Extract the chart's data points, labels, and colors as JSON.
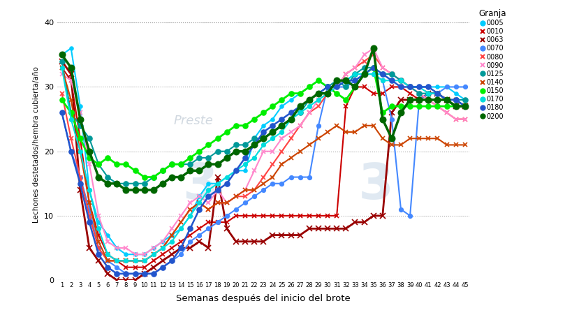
{
  "xlabel": "Semanas después del inicio del brote",
  "ylabel": "Lechones destetados/hembra cubierta/año",
  "legend_title": "Granja",
  "ylim": [
    0,
    42
  ],
  "yticks": [
    0,
    10,
    20,
    30,
    40
  ],
  "background_color": "#ffffff",
  "watermark_text": "3        3",
  "watermark_label": "Preste",
  "series": {
    "0005": {
      "color": "#00ccff",
      "marker": "o",
      "linewidth": 1.5,
      "markersize": 3.5,
      "x": [
        1,
        2,
        3,
        4,
        5,
        6,
        7,
        8,
        9,
        10,
        11,
        12,
        13,
        14,
        15,
        16,
        17,
        18,
        19,
        20,
        21,
        22,
        23,
        24,
        25,
        26,
        27,
        28,
        29,
        30,
        31,
        32,
        33,
        34,
        35,
        36,
        37,
        38,
        39,
        40,
        41,
        42,
        43,
        44,
        45
      ],
      "y": [
        35,
        36,
        27,
        14,
        9,
        7,
        5,
        4,
        4,
        4,
        5,
        6,
        7,
        8,
        10,
        13,
        15,
        15,
        16,
        17,
        17,
        22,
        24,
        25,
        27,
        28,
        29,
        30,
        31,
        30,
        30,
        31,
        32,
        32,
        32,
        32,
        32,
        31,
        30,
        30,
        30,
        30,
        30,
        29,
        28
      ]
    },
    "0010": {
      "color": "#cc0000",
      "marker": "x",
      "linewidth": 1.5,
      "markersize": 5,
      "x": [
        1,
        2,
        3,
        4,
        5,
        6,
        7,
        8,
        9,
        10,
        11,
        12,
        13,
        14,
        15,
        16,
        17,
        18,
        19,
        20,
        21,
        22,
        23,
        24,
        25,
        26,
        27,
        28,
        29,
        30,
        31,
        32,
        33,
        34,
        35,
        36,
        37,
        38,
        39,
        40,
        41,
        42,
        43,
        44,
        45
      ],
      "y": [
        33,
        31,
        22,
        12,
        7,
        4,
        3,
        2,
        2,
        2,
        3,
        4,
        5,
        6,
        7,
        8,
        9,
        9,
        9,
        10,
        10,
        10,
        10,
        10,
        10,
        10,
        10,
        10,
        10,
        10,
        10,
        27,
        30,
        30,
        29,
        29,
        30,
        30,
        29,
        28,
        28,
        28,
        28,
        28,
        27
      ]
    },
    "0063": {
      "color": "#990000",
      "marker": "x",
      "linewidth": 2.0,
      "markersize": 6,
      "x": [
        1,
        2,
        3,
        4,
        5,
        6,
        7,
        8,
        9,
        10,
        11,
        12,
        13,
        14,
        15,
        16,
        17,
        18,
        19,
        20,
        21,
        22,
        23,
        24,
        25,
        26,
        27,
        28,
        29,
        30,
        31,
        32,
        33,
        34,
        35,
        36,
        37,
        38,
        39,
        40,
        41,
        42,
        43,
        44,
        45
      ],
      "y": [
        34,
        32,
        14,
        5,
        3,
        1,
        0,
        0,
        0,
        1,
        2,
        3,
        4,
        5,
        5,
        6,
        5,
        16,
        8,
        6,
        6,
        6,
        6,
        7,
        7,
        7,
        7,
        8,
        8,
        8,
        8,
        8,
        9,
        9,
        10,
        10,
        26,
        28,
        28,
        28,
        29,
        29,
        28,
        27,
        27
      ]
    },
    "0070": {
      "color": "#4488ff",
      "marker": "o",
      "linewidth": 1.5,
      "markersize": 4,
      "x": [
        1,
        2,
        3,
        4,
        5,
        6,
        7,
        8,
        9,
        10,
        11,
        12,
        13,
        14,
        15,
        16,
        17,
        18,
        19,
        20,
        21,
        22,
        23,
        24,
        25,
        26,
        27,
        28,
        29,
        30,
        31,
        32,
        33,
        34,
        35,
        36,
        37,
        38,
        39,
        40,
        41,
        42,
        43,
        44,
        45
      ],
      "y": [
        26,
        20,
        16,
        11,
        5,
        3,
        2,
        1,
        1,
        1,
        1,
        2,
        3,
        4,
        6,
        7,
        8,
        9,
        10,
        11,
        12,
        13,
        14,
        15,
        15,
        16,
        16,
        16,
        24,
        30,
        30,
        30,
        31,
        32,
        32,
        31,
        25,
        11,
        10,
        28,
        29,
        29,
        30,
        30,
        30
      ]
    },
    "0080": {
      "color": "#ff4444",
      "marker": "x",
      "linewidth": 1.5,
      "markersize": 5,
      "x": [
        1,
        2,
        3,
        4,
        5,
        6,
        7,
        8,
        9,
        10,
        11,
        12,
        13,
        14,
        15,
        16,
        17,
        18,
        19,
        20,
        21,
        22,
        23,
        24,
        25,
        26,
        27,
        28,
        29,
        30,
        31,
        32,
        33,
        34,
        35,
        36,
        37,
        38,
        39,
        40,
        41,
        42,
        43,
        44,
        45
      ],
      "y": [
        29,
        22,
        16,
        10,
        5,
        3,
        3,
        3,
        3,
        3,
        4,
        5,
        7,
        9,
        11,
        12,
        11,
        12,
        12,
        13,
        13,
        14,
        16,
        18,
        20,
        22,
        24,
        26,
        27,
        29,
        30,
        32,
        33,
        34,
        35,
        33,
        32,
        31,
        30,
        29,
        28,
        27,
        26,
        25,
        25
      ]
    },
    "0090": {
      "color": "#ff88cc",
      "marker": "x",
      "linewidth": 1.5,
      "markersize": 5,
      "x": [
        1,
        2,
        3,
        4,
        5,
        6,
        7,
        8,
        9,
        10,
        11,
        12,
        13,
        14,
        15,
        16,
        17,
        18,
        19,
        20,
        21,
        22,
        23,
        24,
        25,
        26,
        27,
        28,
        29,
        30,
        31,
        32,
        33,
        34,
        35,
        36,
        37,
        38,
        39,
        40,
        41,
        42,
        43,
        44,
        45
      ],
      "y": [
        32,
        31,
        26,
        18,
        10,
        6,
        5,
        5,
        4,
        4,
        5,
        6,
        8,
        10,
        12,
        13,
        12,
        14,
        12,
        13,
        14,
        17,
        20,
        20,
        22,
        23,
        24,
        26,
        28,
        29,
        30,
        32,
        33,
        35,
        36,
        33,
        32,
        31,
        30,
        29,
        28,
        27,
        26,
        25,
        25
      ]
    },
    "0125": {
      "color": "#009999",
      "marker": "o",
      "linewidth": 1.5,
      "markersize": 5,
      "x": [
        1,
        2,
        3,
        4,
        5,
        6,
        7,
        8,
        9,
        10,
        11,
        12,
        13,
        14,
        15,
        16,
        17,
        18,
        19,
        20,
        21,
        22,
        23,
        24,
        25,
        26,
        27,
        28,
        29,
        30,
        31,
        32,
        33,
        34,
        35,
        36,
        37,
        38,
        39,
        40,
        41,
        42,
        43,
        44,
        45
      ],
      "y": [
        34,
        26,
        24,
        22,
        18,
        16,
        15,
        15,
        15,
        15,
        16,
        17,
        18,
        18,
        18,
        19,
        19,
        20,
        20,
        21,
        21,
        22,
        22,
        23,
        24,
        25,
        26,
        28,
        29,
        30,
        31,
        30,
        32,
        33,
        33,
        32,
        32,
        31,
        30,
        29,
        29,
        29,
        28,
        28,
        28
      ]
    },
    "0140": {
      "color": "#cc4400",
      "marker": "x",
      "linewidth": 1.5,
      "markersize": 5,
      "x": [
        1,
        2,
        3,
        4,
        5,
        6,
        7,
        8,
        9,
        10,
        11,
        12,
        13,
        14,
        15,
        16,
        17,
        18,
        19,
        20,
        21,
        22,
        23,
        24,
        25,
        26,
        27,
        28,
        29,
        30,
        31,
        32,
        33,
        34,
        35,
        36,
        37,
        38,
        39,
        40,
        41,
        42,
        43,
        44,
        45
      ],
      "y": [
        33,
        28,
        20,
        12,
        6,
        3,
        3,
        3,
        3,
        3,
        4,
        5,
        7,
        9,
        11,
        12,
        11,
        12,
        12,
        13,
        14,
        14,
        15,
        16,
        18,
        19,
        20,
        21,
        22,
        23,
        24,
        23,
        23,
        24,
        24,
        22,
        21,
        21,
        22,
        22,
        22,
        22,
        21,
        21,
        21
      ]
    },
    "0150": {
      "color": "#00ee00",
      "marker": "o",
      "linewidth": 2.0,
      "markersize": 5,
      "x": [
        1,
        2,
        3,
        4,
        5,
        6,
        7,
        8,
        9,
        10,
        11,
        12,
        13,
        14,
        15,
        16,
        17,
        18,
        19,
        20,
        21,
        22,
        23,
        24,
        25,
        26,
        27,
        28,
        29,
        30,
        31,
        32,
        33,
        34,
        35,
        36,
        37,
        38,
        39,
        40,
        41,
        42,
        43,
        44,
        45
      ],
      "y": [
        28,
        26,
        22,
        19,
        18,
        19,
        18,
        18,
        17,
        16,
        16,
        17,
        18,
        18,
        19,
        20,
        21,
        22,
        23,
        24,
        24,
        25,
        26,
        27,
        28,
        29,
        29,
        30,
        31,
        30,
        29,
        28,
        30,
        32,
        33,
        26,
        27,
        27,
        27,
        27,
        27,
        27,
        27,
        27,
        27
      ]
    },
    "0170": {
      "color": "#00dddd",
      "marker": "o",
      "linewidth": 1.5,
      "markersize": 4,
      "x": [
        1,
        2,
        3,
        4,
        5,
        6,
        7,
        8,
        9,
        10,
        11,
        12,
        13,
        14,
        15,
        16,
        17,
        18,
        19,
        20,
        21,
        22,
        23,
        24,
        25,
        26,
        27,
        28,
        29,
        30,
        31,
        32,
        33,
        34,
        35,
        36,
        37,
        38,
        39,
        40,
        41,
        42,
        43,
        44,
        45
      ],
      "y": [
        33,
        25,
        20,
        14,
        8,
        4,
        3,
        3,
        3,
        3,
        4,
        5,
        6,
        8,
        10,
        12,
        14,
        15,
        16,
        17,
        18,
        19,
        21,
        22,
        23,
        25,
        26,
        27,
        28,
        29,
        30,
        31,
        32,
        32,
        32,
        31,
        31,
        31,
        30,
        30,
        29,
        29,
        28,
        28,
        27
      ]
    },
    "0180": {
      "color": "#2255cc",
      "marker": "o",
      "linewidth": 1.8,
      "markersize": 5,
      "x": [
        1,
        2,
        3,
        4,
        5,
        6,
        7,
        8,
        9,
        10,
        11,
        12,
        13,
        14,
        15,
        16,
        17,
        18,
        19,
        20,
        21,
        22,
        23,
        24,
        25,
        26,
        27,
        28,
        29,
        30,
        31,
        32,
        33,
        34,
        35,
        36,
        37,
        38,
        39,
        40,
        41,
        42,
        43,
        44,
        45
      ],
      "y": [
        26,
        20,
        15,
        9,
        4,
        2,
        1,
        1,
        1,
        1,
        1,
        2,
        3,
        5,
        8,
        11,
        13,
        14,
        15,
        17,
        19,
        21,
        23,
        24,
        25,
        26,
        27,
        28,
        29,
        30,
        30,
        31,
        31,
        32,
        33,
        32,
        31,
        30,
        30,
        30,
        30,
        29,
        28,
        28,
        27
      ]
    },
    "0200": {
      "color": "#006600",
      "marker": "o",
      "linewidth": 2.5,
      "markersize": 6,
      "x": [
        1,
        2,
        3,
        4,
        5,
        6,
        7,
        8,
        9,
        10,
        11,
        12,
        13,
        14,
        15,
        16,
        17,
        18,
        19,
        20,
        21,
        22,
        23,
        24,
        25,
        26,
        27,
        28,
        29,
        30,
        31,
        32,
        33,
        34,
        35,
        36,
        37,
        38,
        39,
        40,
        41,
        42,
        43,
        44,
        45
      ],
      "y": [
        35,
        33,
        25,
        20,
        16,
        15,
        15,
        14,
        14,
        14,
        14,
        15,
        16,
        16,
        17,
        17,
        18,
        18,
        19,
        20,
        20,
        21,
        22,
        23,
        24,
        25,
        27,
        28,
        29,
        29,
        31,
        31,
        30,
        32,
        36,
        25,
        22,
        26,
        28,
        28,
        28,
        28,
        28,
        27,
        27
      ]
    }
  }
}
